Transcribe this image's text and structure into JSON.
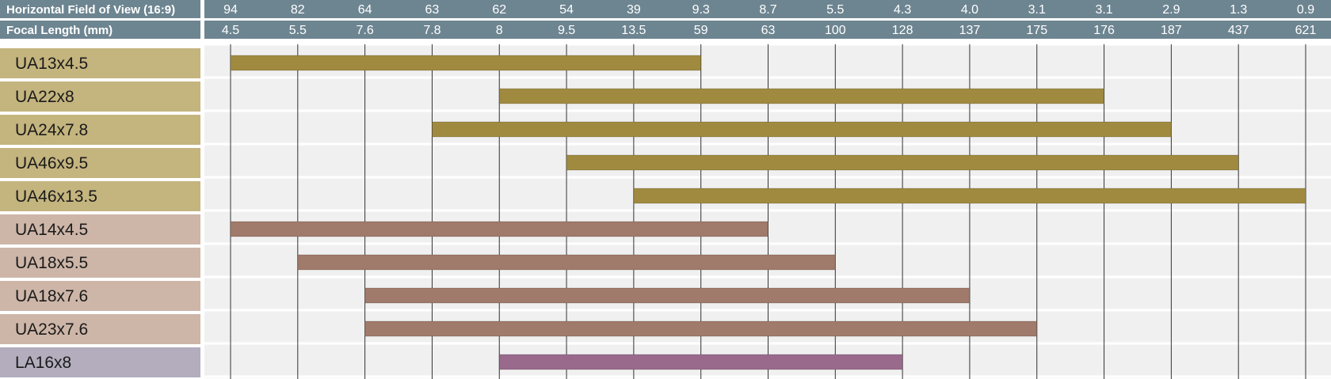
{
  "chart_data": {
    "type": "range-bar",
    "header_rows": [
      {
        "label": "Horizontal Field of View (16:9)",
        "ticks": [
          "94",
          "82",
          "64",
          "63",
          "62",
          "54",
          "39",
          "9.3",
          "8.7",
          "5.5",
          "4.3",
          "4.0",
          "3.1",
          "3.1",
          "2.9",
          "1.3",
          "0.9"
        ]
      },
      {
        "label": "Focal Length (mm)",
        "ticks": [
          "4.5",
          "5.5",
          "7.6",
          "7.8",
          "8",
          "9.5",
          "13.5",
          "59",
          "63",
          "100",
          "128",
          "137",
          "175",
          "176",
          "187",
          "437",
          "621"
        ]
      }
    ],
    "lenses": [
      {
        "name": "UA13x4.5",
        "group": "UA-box",
        "focal_min": 4.5,
        "focal_max": 59
      },
      {
        "name": "UA22x8",
        "group": "UA-box",
        "focal_min": 8,
        "focal_max": 176
      },
      {
        "name": "UA24x7.8",
        "group": "UA-box",
        "focal_min": 7.8,
        "focal_max": 187
      },
      {
        "name": "UA46x9.5",
        "group": "UA-box",
        "focal_min": 9.5,
        "focal_max": 437
      },
      {
        "name": "UA46x13.5",
        "group": "UA-box",
        "focal_min": 13.5,
        "focal_max": 621
      },
      {
        "name": "UA14x4.5",
        "group": "UA-portable",
        "focal_min": 4.5,
        "focal_max": 63
      },
      {
        "name": "UA18x5.5",
        "group": "UA-portable",
        "focal_min": 5.5,
        "focal_max": 100
      },
      {
        "name": "UA18x7.6",
        "group": "UA-portable",
        "focal_min": 7.6,
        "focal_max": 137
      },
      {
        "name": "UA23x7.6",
        "group": "UA-portable",
        "focal_min": 7.6,
        "focal_max": 175
      },
      {
        "name": "LA16x8",
        "group": "LA",
        "focal_min": 8,
        "focal_max": 128
      }
    ],
    "colors": {
      "header_bg": "#6d8591",
      "grid_bg": "#f0f0f0",
      "grid_line": "#333333",
      "separator": "#ffffff",
      "UA-box": {
        "label_bg": "#c4b47e",
        "bar": "#a08a40"
      },
      "UA-portable": {
        "label_bg": "#cdb6a8",
        "bar": "#a07a6a"
      },
      "LA": {
        "label_bg": "#b3adbe",
        "bar": "#9a6a8c"
      }
    }
  }
}
